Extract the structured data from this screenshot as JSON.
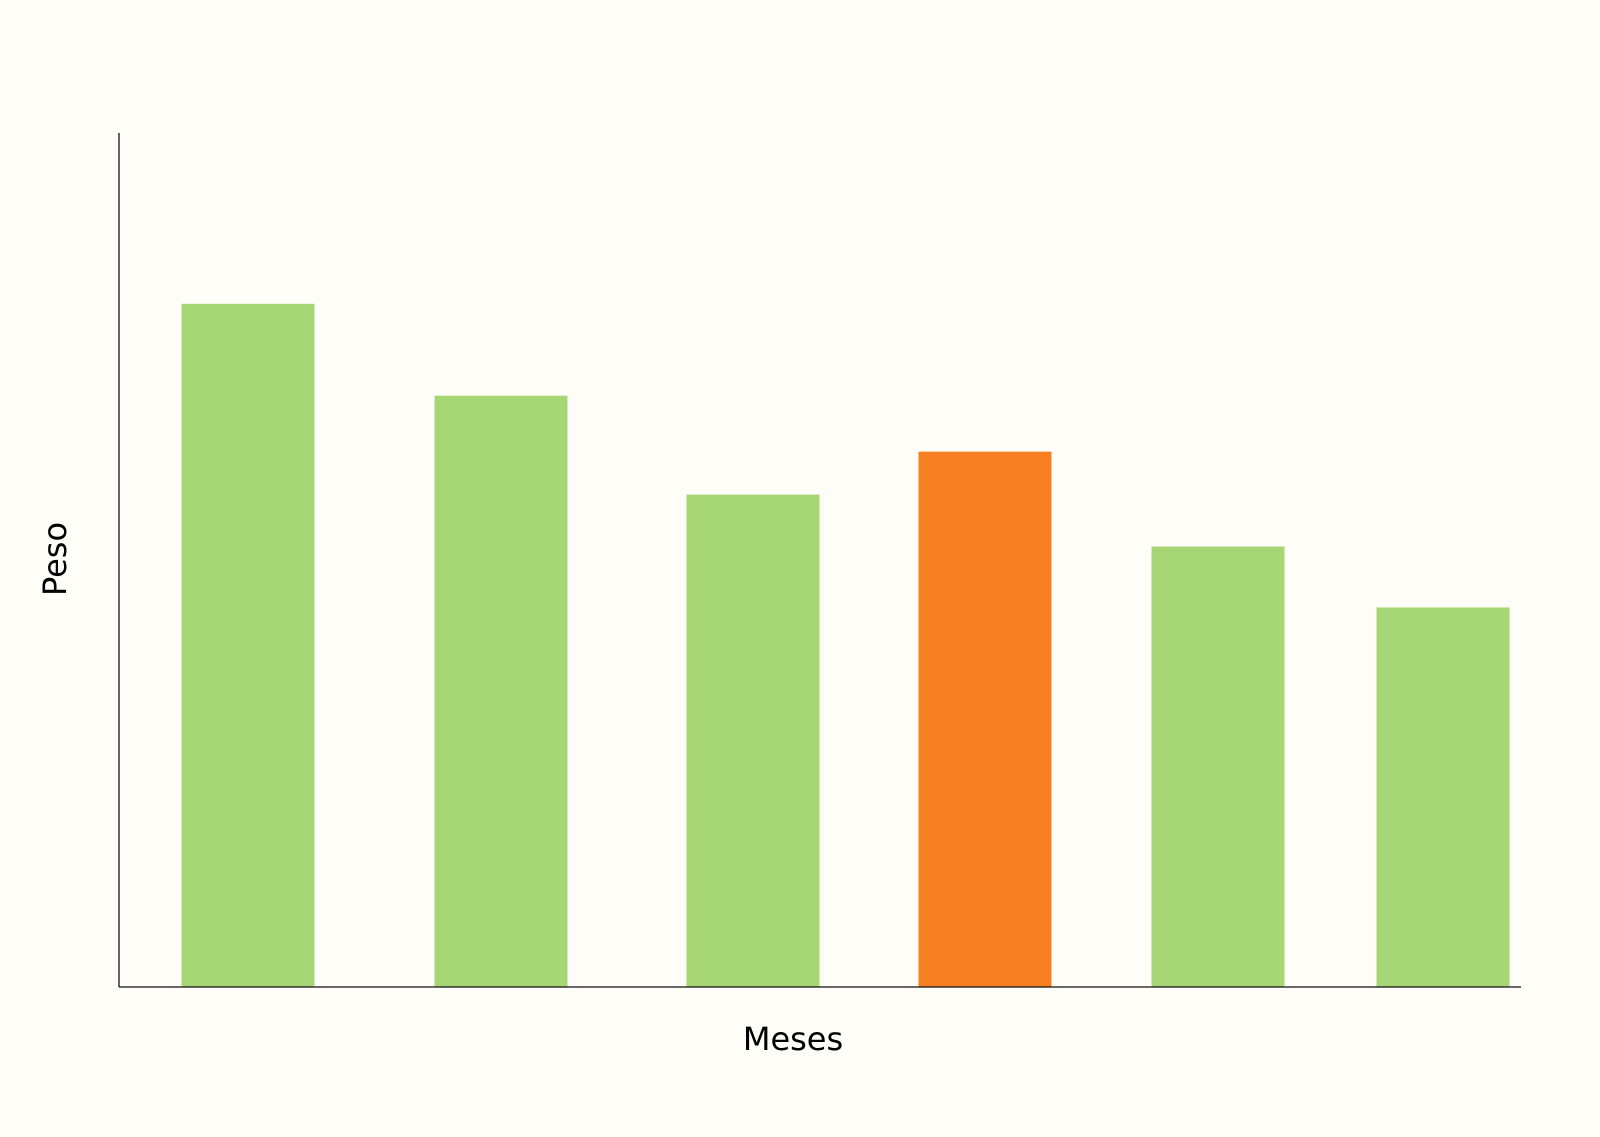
{
  "chart_data": {
    "type": "bar",
    "title": "",
    "xlabel": "Meses",
    "ylabel": "Peso",
    "categories": [
      "",
      "",
      "",
      "",
      "",
      ""
    ],
    "values": [
      684,
      592,
      493,
      536,
      441,
      380
    ],
    "highlight_index": 3,
    "ylim": [
      0,
      855
    ],
    "grid": false,
    "tick_labels_shown": false
  },
  "colors": {
    "background": "#fefdf8",
    "bar": "#a7d674",
    "highlight": "#f77f22",
    "axis": "#111111",
    "text": "#000000"
  }
}
